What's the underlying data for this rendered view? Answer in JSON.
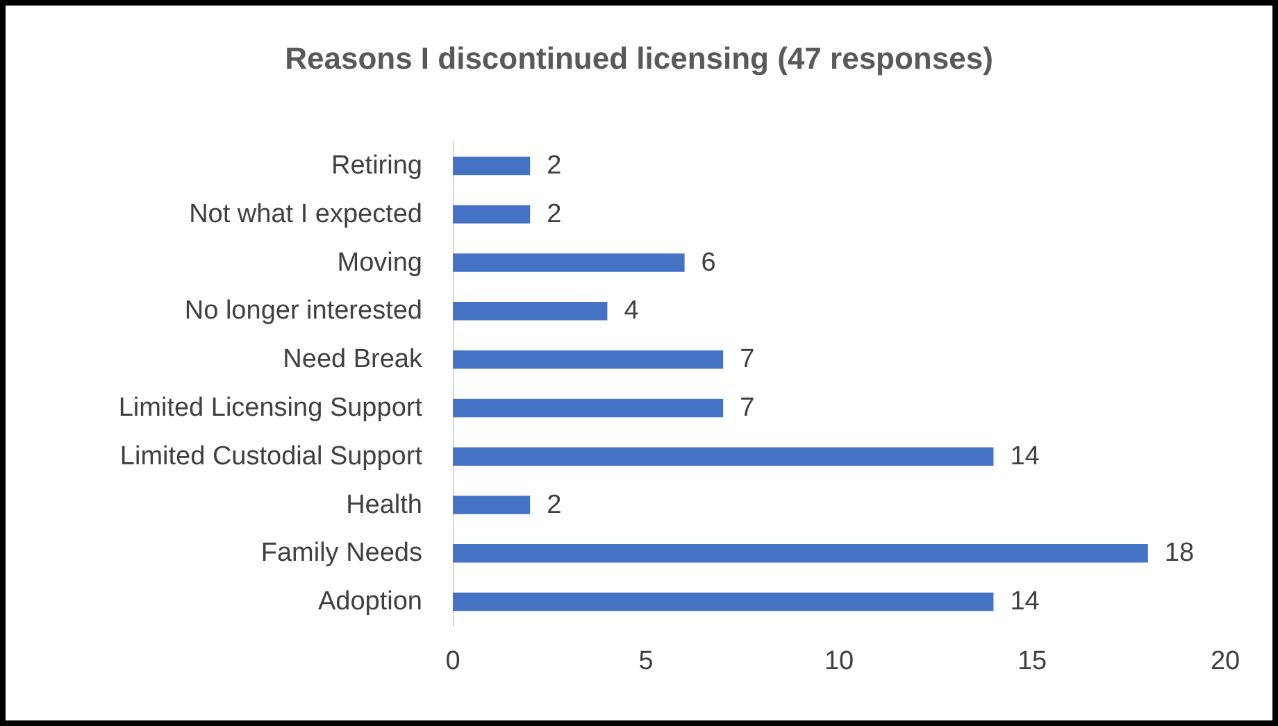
{
  "chart_data": {
    "type": "bar",
    "orientation": "horizontal",
    "title": "Reasons I discontinued licensing (47 responses)",
    "categories": [
      "Retiring",
      "Not what I expected",
      "Moving",
      "No longer interested",
      "Need Break",
      "Limited Licensing Support",
      "Limited Custodial Support",
      "Health",
      "Family Needs",
      "Adoption"
    ],
    "values": [
      2,
      2,
      6,
      4,
      7,
      7,
      14,
      2,
      18,
      14
    ],
    "color": "#4472c4",
    "xlim": [
      0,
      20
    ],
    "xticks": [
      0,
      5,
      10,
      15,
      20
    ],
    "grid": false,
    "data_labels": true
  }
}
